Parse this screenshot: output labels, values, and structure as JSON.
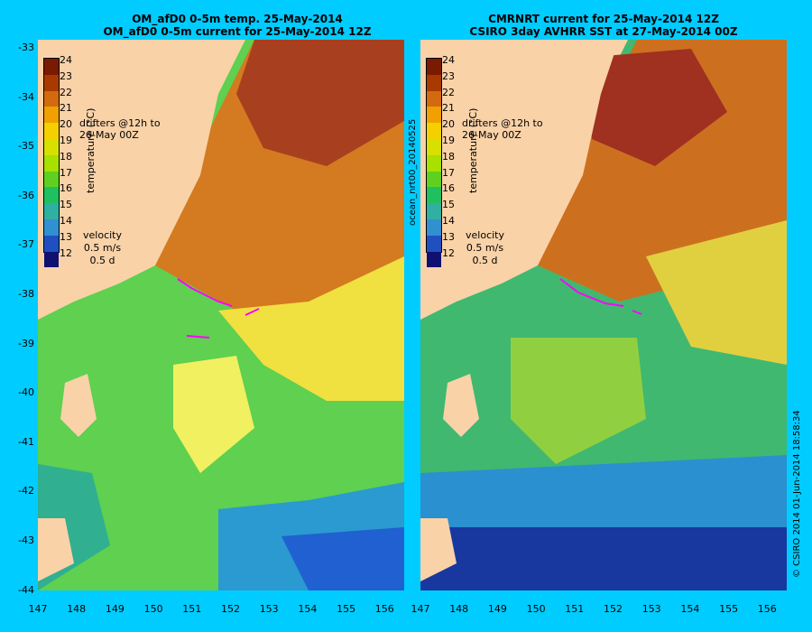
{
  "left_panel": {
    "title_line1": "OM_afD0 0-5m temp. 25-May-2014",
    "title_line2": "OM_afD0 0-5m current for 25-May-2014 12Z"
  },
  "right_panel": {
    "title_line1": "CMRNRT current for 25-May-2014 12Z",
    "title_line2": "CSIRO 3day AVHRR SST at 27-May-2014 00Z"
  },
  "colorbar": {
    "labels": [
      "24",
      "23",
      "22",
      "21",
      "20",
      "19",
      "18",
      "17",
      "16",
      "15",
      "14",
      "13",
      "12"
    ],
    "colors": [
      "#7a1a00",
      "#a83a00",
      "#d46a10",
      "#f0a000",
      "#f5d000",
      "#d8e000",
      "#a8e000",
      "#60d020",
      "#20c060",
      "#30b0a0",
      "#3090d0",
      "#2050c0",
      "#101070"
    ],
    "title": "temperature (°C)"
  },
  "legend": {
    "drifters": "drifters @12h to\n26-May 00Z",
    "velocity_title": "velocity",
    "velocity_scale": "0.5 m/s",
    "velocity_time": "0.5 d"
  },
  "y_ticks": [
    "-33",
    "-34",
    "-35",
    "-36",
    "-37",
    "-38",
    "-39",
    "-40",
    "-41",
    "-42",
    "-43",
    "-44"
  ],
  "x_ticks": [
    "147",
    "148",
    "149",
    "150",
    "151",
    "152",
    "153",
    "154",
    "155",
    "156"
  ],
  "side_text_left": "ocean_nrt00_20140525",
  "side_text_right": "© CSIRO 2014  01-Jun-2014 18:58:34"
}
